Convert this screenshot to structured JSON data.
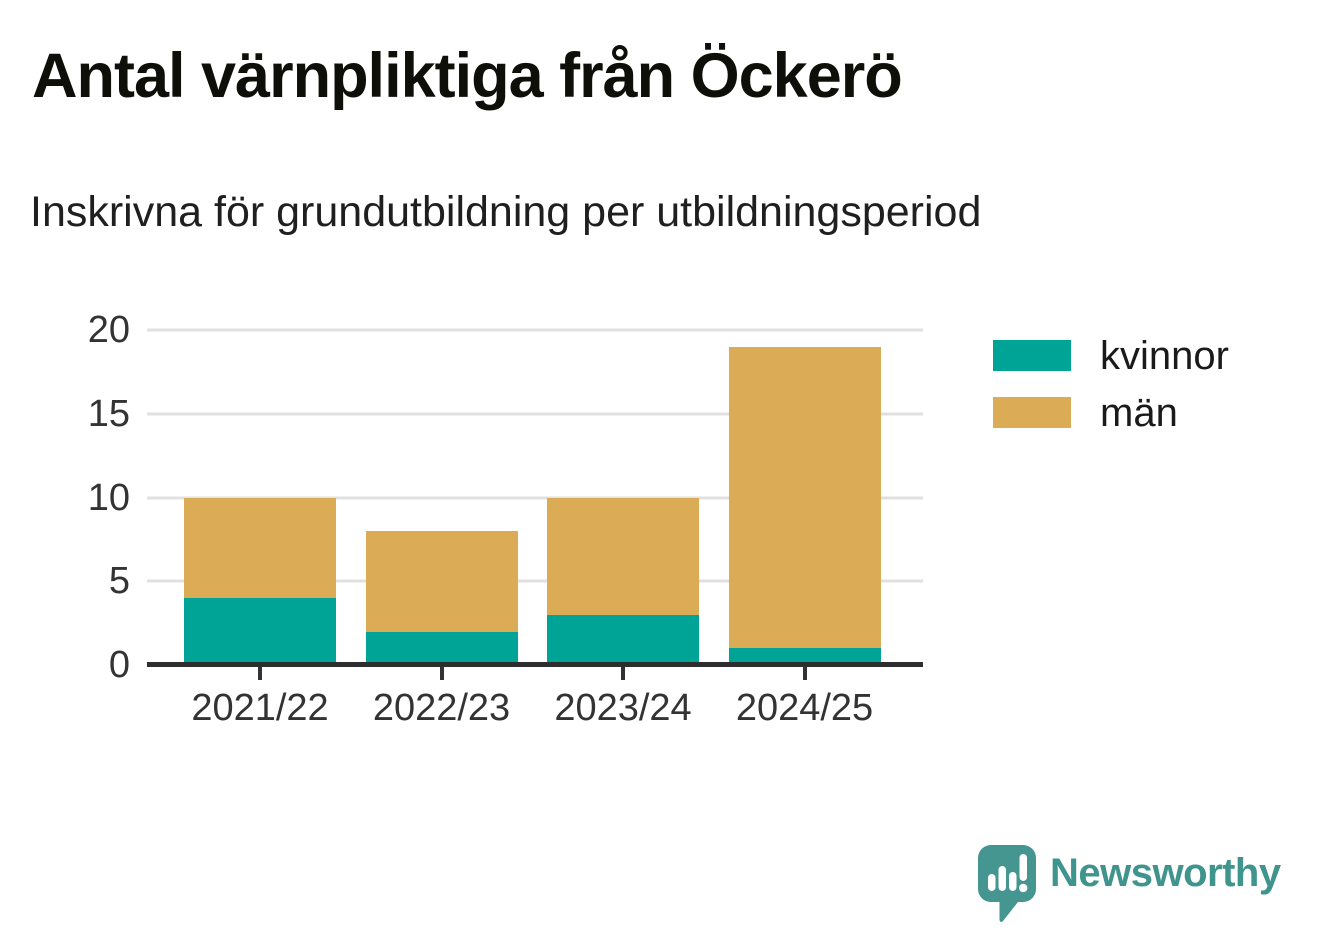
{
  "page": {
    "title": "Antal värnpliktiga från Öckerö",
    "subtitle": "Inskrivna för grundutbildning per utbildningsperiod"
  },
  "chart_data": {
    "type": "bar",
    "stacked": true,
    "title": "Antal värnpliktiga från Öckerö",
    "subtitle": "Inskrivna för grundutbildning per utbildningsperiod",
    "categories": [
      "2021/22",
      "2022/23",
      "2023/24",
      "2024/25"
    ],
    "series": [
      {
        "name": "kvinnor",
        "color": "#00a496",
        "values": [
          4,
          2,
          3,
          1
        ]
      },
      {
        "name": "män",
        "color": "#dbac55",
        "values": [
          6,
          6,
          7,
          18
        ]
      }
    ],
    "totals": [
      10,
      8,
      10,
      19
    ],
    "xlabel": "",
    "ylabel": "",
    "ylim": [
      0,
      20
    ],
    "yticks": [
      0,
      5,
      10,
      15,
      20
    ],
    "grid": true,
    "legend_position": "right"
  },
  "branding": {
    "logo_text": "Newsworthy",
    "logo_text_color": "#3f948e",
    "logo_icon_color": "#459690"
  },
  "colors": {
    "grid": "#e0e0e0",
    "axis": "#2e2e2e",
    "tick_mark": "#333333",
    "tick_label": "#333333"
  }
}
